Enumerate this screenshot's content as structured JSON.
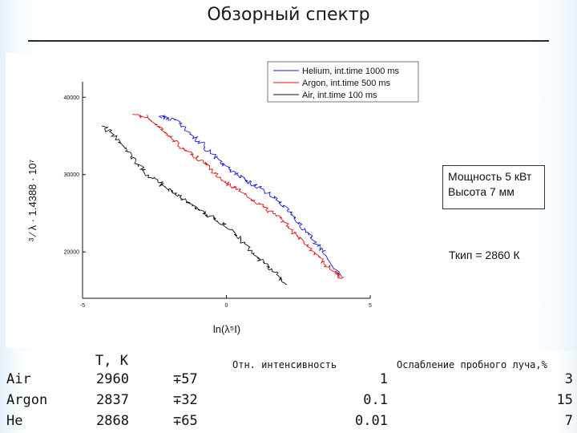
{
  "slide": {
    "title": "Обзорный спектр"
  },
  "chart_data": {
    "type": "line",
    "xlabel": "ln(λ⁵I)",
    "ylabel": "³ ⁄ λ · 1.4388 · 10⁷",
    "xlim": [
      -5,
      5
    ],
    "ylim": [
      14000,
      42000
    ],
    "x_ticks": [
      "-5",
      "0",
      "5"
    ],
    "y_ticks": [
      "20000",
      "30000",
      "40000"
    ],
    "legend_position": "top-right",
    "series": [
      {
        "name": "Helium, int.time 1000 ms",
        "color": "#1a1ad6",
        "x": [
          -2.3,
          -1.8,
          -1.3,
          -0.8,
          -0.3,
          0.2,
          0.7,
          1.2,
          1.7,
          2.2,
          2.6,
          3.0,
          3.4,
          4.0
        ],
        "y": [
          37500,
          37100,
          35500,
          33800,
          32000,
          30500,
          29200,
          28200,
          27000,
          25300,
          23300,
          21700,
          19900,
          16800
        ]
      },
      {
        "name": "Argon, int.time 500 ms",
        "color": "#e01515",
        "x": [
          -3.2,
          -2.7,
          -2.2,
          -1.7,
          -1.2,
          -0.7,
          -0.2,
          0.3,
          0.8,
          1.3,
          1.8,
          2.3,
          2.8,
          3.3,
          3.8,
          4.0
        ],
        "y": [
          37800,
          37400,
          35600,
          34000,
          32600,
          31300,
          29500,
          28300,
          27000,
          25700,
          24500,
          22700,
          20900,
          18900,
          17300,
          16700
        ]
      },
      {
        "name": "Air, int.time 100 ms",
        "color": "#111111",
        "x": [
          -4.3,
          -3.8,
          -3.3,
          -2.8,
          -2.3,
          -1.8,
          -1.3,
          -0.8,
          -0.3,
          0.2,
          0.7,
          1.2,
          1.7,
          2.1
        ],
        "y": [
          36500,
          34500,
          32300,
          30200,
          28800,
          27600,
          26300,
          25100,
          24000,
          22600,
          20800,
          18900,
          17300,
          15800
        ]
      }
    ]
  },
  "info": {
    "line1": "Мощность 5 кВт",
    "line2": "Высота 7 мм",
    "tkip": "Ткип = 2860 К"
  },
  "table": {
    "header_t": "T, K",
    "header_rel": "Отн. интенсивность",
    "header_att": "Ослабление пробного луча,%",
    "rows": [
      {
        "gas": "Air",
        "t": "2960",
        "err": "∓57",
        "rel": "1",
        "att": "3"
      },
      {
        "gas": "Argon",
        "t": "2837",
        "err": "∓32",
        "rel": "0.1",
        "att": "15"
      },
      {
        "gas": "He",
        "t": "2868",
        "err": "∓65",
        "rel": "0.01",
        "att": "7"
      }
    ]
  }
}
